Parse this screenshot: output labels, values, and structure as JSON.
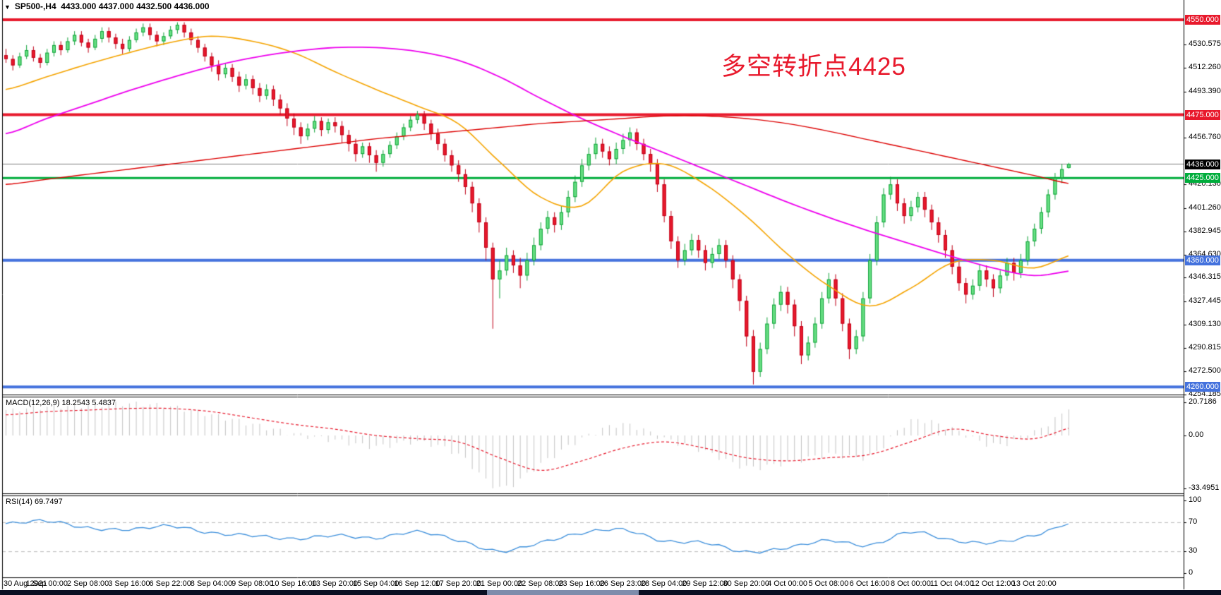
{
  "header": {
    "dropdown_icon": "▼",
    "symbol": "SP500-,H4",
    "open": "4433.000",
    "high": "4437.000",
    "low": "4432.500",
    "close": "4436.000"
  },
  "annotation": {
    "text": "多空转折点4425",
    "color": "#e8192c"
  },
  "price_axis": {
    "ticks": [
      {
        "label": "4530.575",
        "price": 4530.575
      },
      {
        "label": "4512.260",
        "price": 4512.26
      },
      {
        "label": "4493.390",
        "price": 4493.39
      },
      {
        "label": "4456.760",
        "price": 4456.76
      },
      {
        "label": "4420.130",
        "price": 4420.13
      },
      {
        "label": "4401.260",
        "price": 4401.26
      },
      {
        "label": "4382.945",
        "price": 4382.945
      },
      {
        "label": "4364.630",
        "price": 4364.63
      },
      {
        "label": "4346.315",
        "price": 4346.315
      },
      {
        "label": "4327.445",
        "price": 4327.445
      },
      {
        "label": "4309.130",
        "price": 4309.13
      },
      {
        "label": "4290.815",
        "price": 4290.815
      },
      {
        "label": "4272.500",
        "price": 4272.5
      },
      {
        "label": "4254.185",
        "price": 4254.185
      }
    ],
    "badges": [
      {
        "label": "4550.000",
        "price": 4550,
        "bg": "#e8192c"
      },
      {
        "label": "4475.000",
        "price": 4475,
        "bg": "#e8192c"
      },
      {
        "label": "4436.000",
        "price": 4436,
        "bg": "#000000"
      },
      {
        "label": "4425.000",
        "price": 4425,
        "bg": "#00ad3c"
      },
      {
        "label": "4360.000",
        "price": 4360,
        "bg": "#4472dd"
      },
      {
        "label": "4260.000",
        "price": 4260,
        "bg": "#4472dd"
      }
    ]
  },
  "indicators": {
    "macd": {
      "label": "MACD(12,26,9) 18.2543 5.4837",
      "ticks": [
        {
          "label": "20.7186",
          "value": 20.7186
        },
        {
          "label": "0.00",
          "value": 0
        },
        {
          "label": "-33.4951",
          "value": -33.4951
        }
      ]
    },
    "rsi": {
      "label": "RSI(14) 69.7497",
      "ticks": [
        {
          "label": "100",
          "value": 100
        },
        {
          "label": "70",
          "value": 70
        },
        {
          "label": "30",
          "value": 30
        },
        {
          "label": "0",
          "value": 0
        }
      ],
      "level_lines": [
        70,
        30
      ]
    }
  },
  "time_axis": {
    "labels": [
      "30 Aug 2021",
      "1 Sep 00:00",
      "2 Sep 08:00",
      "3 Sep 16:00",
      "6 Sep 22:00",
      "8 Sep 04:00",
      "9 Sep 08:00",
      "10 Sep 16:00",
      "13 Sep 20:00",
      "15 Sep 04:00",
      "16 Sep 12:00",
      "17 Sep 20:00",
      "21 Sep 00:00",
      "22 Sep 08:00",
      "23 Sep 16:00",
      "26 Sep 23:00",
      "28 Sep 04:00",
      "29 Sep 12:00",
      "30 Sep 20:00",
      "4 Oct 00:00",
      "5 Oct 08:00",
      "6 Oct 16:00",
      "8 Oct 00:00",
      "11 Oct 04:00",
      "12 Oct 12:00",
      "13 Oct 20:00"
    ]
  },
  "colors": {
    "bull_fill": "#68e084",
    "bull_border": "#11a33a",
    "bear_fill": "#e8192c",
    "bear_border": "#c00018",
    "ma_orange": "#f5a400",
    "ma_magenta": "#ee00ee",
    "ma_red": "#dd0000",
    "macd_hist": "#c4c4c4",
    "macd_signal": "#e8192c",
    "rsi_line": "#3c8fdc",
    "rsi_levels": "#bbbbbb",
    "current_price_line": "#808080",
    "panel_border": "#000000"
  },
  "chart_data": {
    "type": "candlestick",
    "symbol": "SP500-",
    "timeframe": "H4",
    "hlines": [
      {
        "price": 4550,
        "color": "#e8192c",
        "width": 4
      },
      {
        "price": 4475,
        "color": "#e8192c",
        "width": 4
      },
      {
        "price": 4436,
        "color": "#808080",
        "width": 1
      },
      {
        "price": 4425,
        "color": "#00ad3c",
        "width": 3
      },
      {
        "price": 4360,
        "color": "#4472dd",
        "width": 4
      },
      {
        "price": 4260,
        "color": "#4472dd",
        "width": 4
      }
    ],
    "ylim": [
      4254.185,
      4558.0
    ],
    "ohlc": [
      [
        4522,
        4527,
        4516,
        4519
      ],
      [
        4519,
        4522,
        4510,
        4514
      ],
      [
        4514,
        4524,
        4512,
        4521
      ],
      [
        4521,
        4530,
        4519,
        4526
      ],
      [
        4526,
        4529,
        4517,
        4520
      ],
      [
        4520,
        4523,
        4512,
        4516
      ],
      [
        4516,
        4527,
        4514,
        4524
      ],
      [
        4524,
        4533,
        4521,
        4530
      ],
      [
        4530,
        4533,
        4522,
        4526
      ],
      [
        4526,
        4536,
        4524,
        4533
      ],
      [
        4533,
        4541,
        4530,
        4538
      ],
      [
        4538,
        4541,
        4529,
        4532
      ],
      [
        4532,
        4535,
        4524,
        4528
      ],
      [
        4528,
        4538,
        4526,
        4535
      ],
      [
        4535,
        4544,
        4532,
        4541
      ],
      [
        4541,
        4544,
        4532,
        4536
      ],
      [
        4536,
        4539,
        4527,
        4531
      ],
      [
        4531,
        4535,
        4523,
        4527
      ],
      [
        4527,
        4537,
        4525,
        4534
      ],
      [
        4534,
        4543,
        4532,
        4540
      ],
      [
        4540,
        4547,
        4537,
        4544
      ],
      [
        4544,
        4547,
        4534,
        4538
      ],
      [
        4538,
        4541,
        4529,
        4533
      ],
      [
        4533,
        4540,
        4530,
        4537
      ],
      [
        4537,
        4545,
        4535,
        4542
      ],
      [
        4542,
        4548,
        4539,
        4546
      ],
      [
        4546,
        4548,
        4536,
        4540
      ],
      [
        4540,
        4543,
        4530,
        4534
      ],
      [
        4534,
        4537,
        4524,
        4528
      ],
      [
        4528,
        4531,
        4517,
        4521
      ],
      [
        4521,
        4524,
        4509,
        4514
      ],
      [
        4514,
        4518,
        4502,
        4507
      ],
      [
        4507,
        4516,
        4504,
        4512
      ],
      [
        4512,
        4515,
        4501,
        4505
      ],
      [
        4505,
        4509,
        4493,
        4498
      ],
      [
        4498,
        4507,
        4495,
        4503
      ],
      [
        4503,
        4506,
        4491,
        4496
      ],
      [
        4496,
        4500,
        4485,
        4490
      ],
      [
        4490,
        4499,
        4487,
        4495
      ],
      [
        4495,
        4498,
        4482,
        4487
      ],
      [
        4487,
        4491,
        4475,
        4480
      ],
      [
        4480,
        4484,
        4466,
        4472
      ],
      [
        4472,
        4476,
        4459,
        4465
      ],
      [
        4465,
        4469,
        4452,
        4458
      ],
      [
        4458,
        4468,
        4455,
        4464
      ],
      [
        4464,
        4474,
        4461,
        4470
      ],
      [
        4470,
        4473,
        4458,
        4463
      ],
      [
        4463,
        4472,
        4460,
        4469
      ],
      [
        4469,
        4473,
        4461,
        4466
      ],
      [
        4466,
        4470,
        4453,
        4459
      ],
      [
        4459,
        4463,
        4446,
        4452
      ],
      [
        4452,
        4456,
        4438,
        4444
      ],
      [
        4444,
        4453,
        4441,
        4450
      ],
      [
        4450,
        4453,
        4437,
        4443
      ],
      [
        4443,
        4447,
        4430,
        4437
      ],
      [
        4437,
        4447,
        4434,
        4444
      ],
      [
        4444,
        4454,
        4441,
        4451
      ],
      [
        4451,
        4461,
        4448,
        4458
      ],
      [
        4458,
        4468,
        4455,
        4465
      ],
      [
        4465,
        4474,
        4462,
        4471
      ],
      [
        4471,
        4478,
        4468,
        4475
      ],
      [
        4475,
        4478,
        4463,
        4468
      ],
      [
        4468,
        4471,
        4455,
        4460
      ],
      [
        4460,
        4464,
        4447,
        4452
      ],
      [
        4452,
        4456,
        4438,
        4443
      ],
      [
        4443,
        4447,
        4430,
        4435
      ],
      [
        4435,
        4439,
        4422,
        4428
      ],
      [
        4428,
        4432,
        4412,
        4418
      ],
      [
        4418,
        4422,
        4398,
        4405
      ],
      [
        4405,
        4409,
        4382,
        4390
      ],
      [
        4390,
        4394,
        4360,
        4370
      ],
      [
        4370,
        4374,
        4306,
        4345
      ],
      [
        4345,
        4360,
        4330,
        4352
      ],
      [
        4352,
        4370,
        4348,
        4364
      ],
      [
        4364,
        4368,
        4350,
        4356
      ],
      [
        4356,
        4362,
        4338,
        4348
      ],
      [
        4348,
        4366,
        4344,
        4360
      ],
      [
        4360,
        4378,
        4356,
        4372
      ],
      [
        4372,
        4390,
        4368,
        4385
      ],
      [
        4385,
        4399,
        4381,
        4394
      ],
      [
        4394,
        4398,
        4382,
        4388
      ],
      [
        4388,
        4403,
        4384,
        4398
      ],
      [
        4398,
        4415,
        4394,
        4410
      ],
      [
        4410,
        4427,
        4406,
        4422
      ],
      [
        4422,
        4440,
        4418,
        4435
      ],
      [
        4435,
        4449,
        4431,
        4444
      ],
      [
        4444,
        4457,
        4440,
        4452
      ],
      [
        4452,
        4456,
        4441,
        4446
      ],
      [
        4446,
        4450,
        4435,
        4440
      ],
      [
        4440,
        4453,
        4436,
        4448
      ],
      [
        4448,
        4460,
        4444,
        4455
      ],
      [
        4455,
        4465,
        4450,
        4461
      ],
      [
        4461,
        4464,
        4447,
        4452
      ],
      [
        4452,
        4456,
        4439,
        4444
      ],
      [
        4444,
        4448,
        4430,
        4436
      ],
      [
        4436,
        4440,
        4414,
        4420
      ],
      [
        4420,
        4424,
        4390,
        4395
      ],
      [
        4395,
        4399,
        4369,
        4375
      ],
      [
        4375,
        4379,
        4354,
        4360
      ],
      [
        4360,
        4373,
        4356,
        4368
      ],
      [
        4368,
        4381,
        4364,
        4376
      ],
      [
        4376,
        4380,
        4362,
        4368
      ],
      [
        4368,
        4372,
        4352,
        4358
      ],
      [
        4358,
        4370,
        4354,
        4365
      ],
      [
        4365,
        4377,
        4361,
        4372
      ],
      [
        4372,
        4376,
        4354,
        4360
      ],
      [
        4360,
        4364,
        4338,
        4345
      ],
      [
        4345,
        4349,
        4320,
        4328
      ],
      [
        4328,
        4332,
        4292,
        4300
      ],
      [
        4300,
        4305,
        4262,
        4272
      ],
      [
        4272,
        4295,
        4268,
        4290
      ],
      [
        4290,
        4315,
        4286,
        4310
      ],
      [
        4310,
        4330,
        4306,
        4325
      ],
      [
        4325,
        4340,
        4320,
        4335
      ],
      [
        4335,
        4339,
        4318,
        4325
      ],
      [
        4325,
        4329,
        4300,
        4308
      ],
      [
        4308,
        4312,
        4278,
        4285
      ],
      [
        4285,
        4300,
        4281,
        4295
      ],
      [
        4295,
        4315,
        4291,
        4310
      ],
      [
        4310,
        4335,
        4306,
        4330
      ],
      [
        4330,
        4350,
        4326,
        4345
      ],
      [
        4345,
        4349,
        4324,
        4330
      ],
      [
        4330,
        4334,
        4304,
        4310
      ],
      [
        4310,
        4314,
        4282,
        4290
      ],
      [
        4290,
        4305,
        4286,
        4300
      ],
      [
        4300,
        4335,
        4296,
        4330
      ],
      [
        4330,
        4365,
        4326,
        4360
      ],
      [
        4360,
        4395,
        4356,
        4390
      ],
      [
        4390,
        4417,
        4386,
        4412
      ],
      [
        4412,
        4426,
        4408,
        4420
      ],
      [
        4420,
        4424,
        4399,
        4405
      ],
      [
        4405,
        4409,
        4389,
        4395
      ],
      [
        4395,
        4407,
        4391,
        4402
      ],
      [
        4402,
        4414,
        4398,
        4410
      ],
      [
        4410,
        4414,
        4394,
        4400
      ],
      [
        4400,
        4404,
        4384,
        4390
      ],
      [
        4390,
        4394,
        4374,
        4380
      ],
      [
        4380,
        4384,
        4362,
        4368
      ],
      [
        4368,
        4372,
        4349,
        4355
      ],
      [
        4355,
        4359,
        4336,
        4342
      ],
      [
        4342,
        4346,
        4326,
        4333
      ],
      [
        4333,
        4345,
        4329,
        4340
      ],
      [
        4340,
        4357,
        4336,
        4352
      ],
      [
        4352,
        4356,
        4339,
        4345
      ],
      [
        4345,
        4349,
        4331,
        4338
      ],
      [
        4338,
        4352,
        4334,
        4348
      ],
      [
        4348,
        4362,
        4344,
        4358
      ],
      [
        4358,
        4362,
        4344,
        4350
      ],
      [
        4350,
        4365,
        4346,
        4360
      ],
      [
        4360,
        4379,
        4356,
        4375
      ],
      [
        4375,
        4389,
        4371,
        4385
      ],
      [
        4385,
        4402,
        4381,
        4398
      ],
      [
        4398,
        4416,
        4394,
        4412
      ],
      [
        4412,
        4429,
        4408,
        4425
      ],
      [
        4425,
        4436,
        4421,
        4432
      ],
      [
        4433,
        4437,
        4432.5,
        4436
      ]
    ],
    "ma_anchor_step": 6,
    "ma_orange": [
      4495,
      4505,
      4515,
      4524,
      4532,
      4537,
      4533,
      4524,
      4509,
      4495,
      4482,
      4468,
      4438,
      4410,
      4403,
      4430,
      4436,
      4420,
      4395,
      4365,
      4340,
      4324,
      4338,
      4358,
      4360,
      4354,
      4365
    ],
    "ma_magenta": [
      4460,
      4472,
      4483,
      4494,
      4504,
      4513,
      4520,
      4525,
      4528,
      4528,
      4525,
      4518,
      4505,
      4488,
      4472,
      4458,
      4445,
      4432,
      4419,
      4406,
      4394,
      4383,
      4373,
      4363,
      4354,
      4348,
      4352
    ],
    "ma_red": [
      4420,
      4424,
      4428,
      4432,
      4436,
      4440,
      4444,
      4448,
      4452,
      4456,
      4459,
      4462,
      4465,
      4468,
      4470,
      4472,
      4474,
      4474,
      4472,
      4468,
      4462,
      4455,
      4448,
      4441,
      4434,
      4427,
      4420
    ],
    "macd_hist_anchors": [
      16,
      18,
      19,
      20,
      18,
      13,
      7,
      1,
      -3,
      -7,
      -4,
      -12,
      -33,
      -18,
      -2,
      7,
      -2,
      -10,
      -20,
      -17,
      -12,
      -13,
      9,
      4,
      -6,
      2,
      18.25
    ],
    "macd_signal_anchors": [
      13,
      15,
      16,
      17,
      17,
      15,
      11,
      7,
      4,
      0,
      -2,
      -4,
      -14,
      -22,
      -16,
      -8,
      -4,
      -8,
      -14,
      -16,
      -14,
      -12,
      -4,
      4,
      0,
      -2,
      5.48
    ],
    "rsi_anchors": [
      68,
      72,
      62,
      60,
      65,
      55,
      52,
      47,
      52,
      48,
      57,
      45,
      30,
      42,
      55,
      60,
      44,
      42,
      29,
      35,
      45,
      38,
      57,
      45,
      42,
      52,
      69.75
    ],
    "macd_values": {
      "main": 18.2543,
      "signal": 5.4837
    },
    "rsi_value": 69.7497
  }
}
